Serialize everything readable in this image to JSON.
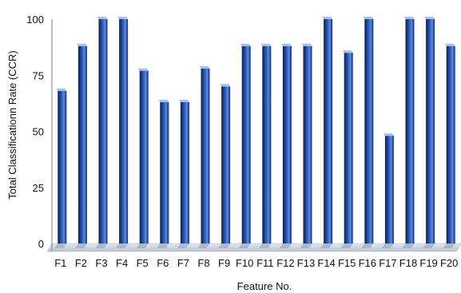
{
  "chart_data": {
    "type": "bar",
    "title": "",
    "xlabel": "Feature No.",
    "ylabel": "Total Classificationn Rate (CCR)",
    "categories": [
      "F1",
      "F2",
      "F3",
      "F4",
      "F5",
      "F6",
      "F7",
      "F8",
      "F9",
      "F10",
      "F11",
      "F12",
      "F13",
      "F14",
      "F15",
      "F16",
      "F17",
      "F18",
      "F19",
      "F20"
    ],
    "values": [
      68,
      88,
      100,
      100,
      77,
      63,
      63,
      78,
      70,
      88,
      88,
      88,
      88,
      100,
      85,
      100,
      48,
      100,
      100,
      88
    ],
    "ylim": [
      0,
      100
    ],
    "yticks": [
      0,
      25,
      50,
      75,
      100
    ],
    "grid": false,
    "colors": {
      "bar_dark": "#0a1f5c",
      "bar_mid": "#1f4fa8",
      "bar_light": "#5c8be0",
      "bar_top": "#9fc1f5",
      "floor": "#cfd6e0",
      "axis": "#7f7f7f"
    }
  }
}
